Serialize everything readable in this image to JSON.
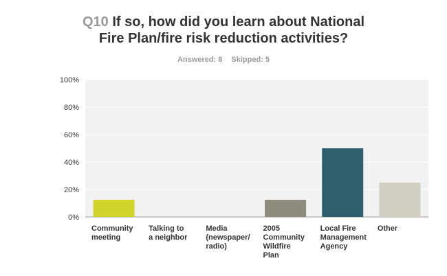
{
  "header": {
    "question_number": "Q10",
    "title_line1": "If so, how did you learn about National",
    "title_line2": "Fire Plan/fire risk reduction activities?",
    "answered": "Answered: 8",
    "skipped": "Skipped: 5"
  },
  "chart_data": {
    "type": "bar",
    "categories": [
      [
        "Community",
        "meeting"
      ],
      [
        "Talking to",
        "a neighbor"
      ],
      [
        "Media",
        "(newspaper/",
        "radio)"
      ],
      [
        "2005",
        "Community",
        "Wildfire",
        "Plan"
      ],
      [
        "Local Fire",
        "Management",
        "Agency"
      ],
      [
        "Other"
      ]
    ],
    "values": [
      12.5,
      0,
      0,
      12.5,
      50,
      25
    ],
    "colors": [
      "#d0d42a",
      "#d0d42a",
      "#d0d42a",
      "#8c8c7c",
      "#2e5f6c",
      "#d0cfc1"
    ],
    "yticks": [
      0,
      20,
      40,
      60,
      80,
      100
    ],
    "ytick_labels": [
      "0%",
      "20%",
      "40%",
      "60%",
      "80%",
      "100%"
    ],
    "ylim": [
      0,
      100
    ],
    "grid": true
  }
}
